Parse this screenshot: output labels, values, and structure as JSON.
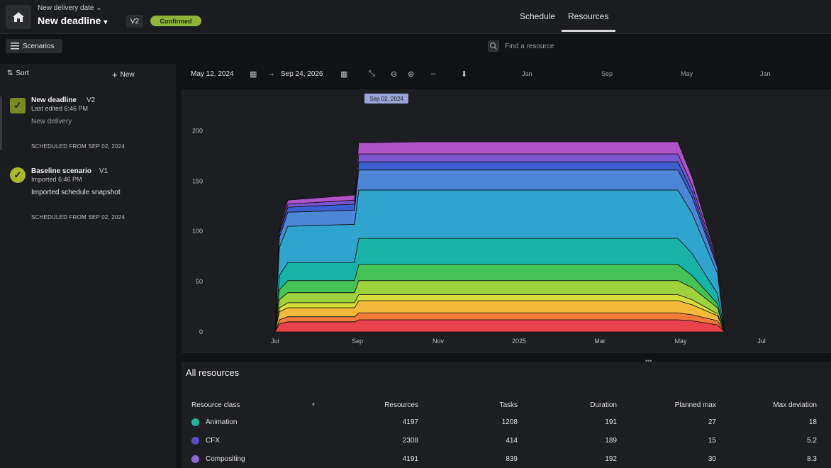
{
  "header": {
    "project_subtitle": "New delivery date",
    "project_title": "New deadline",
    "version": "V2",
    "status": "Confirmed",
    "tabs": [
      {
        "label": "Schedule"
      },
      {
        "label": "Resources"
      }
    ]
  },
  "toolbar": {
    "scenarios_label": "Scenarios",
    "search_placeholder": "Find a resource"
  },
  "sidebar": {
    "sort_label": "Sort",
    "new_label": "New",
    "scenarios": [
      {
        "name": "New deadline",
        "version": "V2",
        "meta": "Last edited 6:46 PM",
        "description": "New delivery",
        "scheduled": "SCHEDULED FROM SEP 02, 2024"
      },
      {
        "name": "Baseline scenario",
        "version": "V1",
        "meta": "Imported 6:46 PM",
        "description": "Imported schedule snapshot",
        "scheduled": "SCHEDULED FROM SEP 02, 2024"
      }
    ]
  },
  "date_range": {
    "start": "May 12, 2024",
    "end": "Sep 24, 2026",
    "timeline_labels": [
      "Jan",
      "Sep",
      "May",
      "Jan"
    ]
  },
  "chart_data": {
    "type": "area",
    "stacked": true,
    "tooltip_label": "Sep 02, 2024",
    "ylim": [
      0,
      220
    ],
    "y_ticks": [
      "0",
      "50",
      "100",
      "150",
      "200"
    ],
    "x_ticks": [
      "Jul",
      "Sep",
      "Nov",
      "2025",
      "Mar",
      "May",
      "Jul"
    ],
    "x": [
      "Jun 15",
      "Jul 01",
      "Jul 15",
      "Aug 15",
      "Sep 02",
      "Sep 15",
      "Nov 01",
      "2025",
      "Mar 01",
      "Apr 01",
      "May 01",
      "May 20",
      "Jun 01",
      "Jun 15"
    ],
    "series": [
      {
        "color": "#e8434b",
        "values": [
          0,
          8,
          10,
          10,
          12,
          12,
          12,
          12,
          12,
          12,
          12,
          11,
          7,
          0
        ]
      },
      {
        "color": "#f07a38",
        "values": [
          0,
          4,
          5,
          5,
          7,
          7,
          7,
          7,
          7,
          7,
          7,
          6,
          4,
          0
        ]
      },
      {
        "color": "#f2b93a",
        "values": [
          0,
          8,
          9,
          9,
          12,
          12,
          12,
          12,
          12,
          12,
          12,
          10,
          5,
          0
        ]
      },
      {
        "color": "#d8dc3a",
        "values": [
          0,
          4,
          5,
          5,
          6,
          6,
          6,
          6,
          6,
          6,
          6,
          5,
          2,
          0
        ]
      },
      {
        "color": "#9ed23d",
        "values": [
          0,
          8,
          10,
          10,
          14,
          14,
          14,
          14,
          14,
          14,
          14,
          12,
          6,
          0
        ]
      },
      {
        "color": "#45c255",
        "values": [
          0,
          10,
          12,
          12,
          16,
          16,
          16,
          16,
          16,
          16,
          16,
          12,
          4,
          0
        ]
      },
      {
        "color": "#17b3a8",
        "values": [
          0,
          14,
          18,
          18,
          26,
          26,
          26,
          26,
          26,
          26,
          26,
          22,
          10,
          0
        ]
      },
      {
        "color": "#2fa4cc",
        "values": [
          0,
          28,
          36,
          38,
          48,
          48,
          48,
          48,
          48,
          48,
          48,
          40,
          20,
          0
        ]
      },
      {
        "color": "#4d86d6",
        "values": [
          0,
          10,
          14,
          14,
          20,
          20,
          20,
          20,
          20,
          20,
          20,
          16,
          6,
          0
        ]
      },
      {
        "color": "#3a5fd0",
        "values": [
          0,
          4,
          5,
          6,
          8,
          8,
          8,
          8,
          8,
          8,
          8,
          6,
          2,
          0
        ]
      },
      {
        "color": "#7a55d0",
        "values": [
          0,
          2,
          3,
          4,
          8,
          8,
          8,
          8,
          8,
          8,
          8,
          6,
          2,
          0
        ]
      },
      {
        "color": "#b052c8",
        "values": [
          0,
          2,
          4,
          5,
          11,
          11,
          12,
          12,
          12,
          12,
          12,
          8,
          2,
          0
        ]
      }
    ]
  },
  "resources": {
    "title": "All resources",
    "columns": [
      "Resource class",
      "Resources",
      "Tasks",
      "Duration",
      "Planned max",
      "Max deviation"
    ],
    "rows": [
      {
        "name": "Animation",
        "color": "#1fb59b",
        "resources": "4197",
        "tasks": "1208",
        "duration": "191",
        "planned_max": "27",
        "max_deviation": "18"
      },
      {
        "name": "CFX",
        "color": "#5a4bc8",
        "resources": "2308",
        "tasks": "414",
        "duration": "189",
        "planned_max": "15",
        "max_deviation": "5.2"
      },
      {
        "name": "Compositing",
        "color": "#8d6ad6",
        "resources": "4191",
        "tasks": "839",
        "duration": "192",
        "planned_max": "30",
        "max_deviation": "8.3"
      }
    ]
  }
}
